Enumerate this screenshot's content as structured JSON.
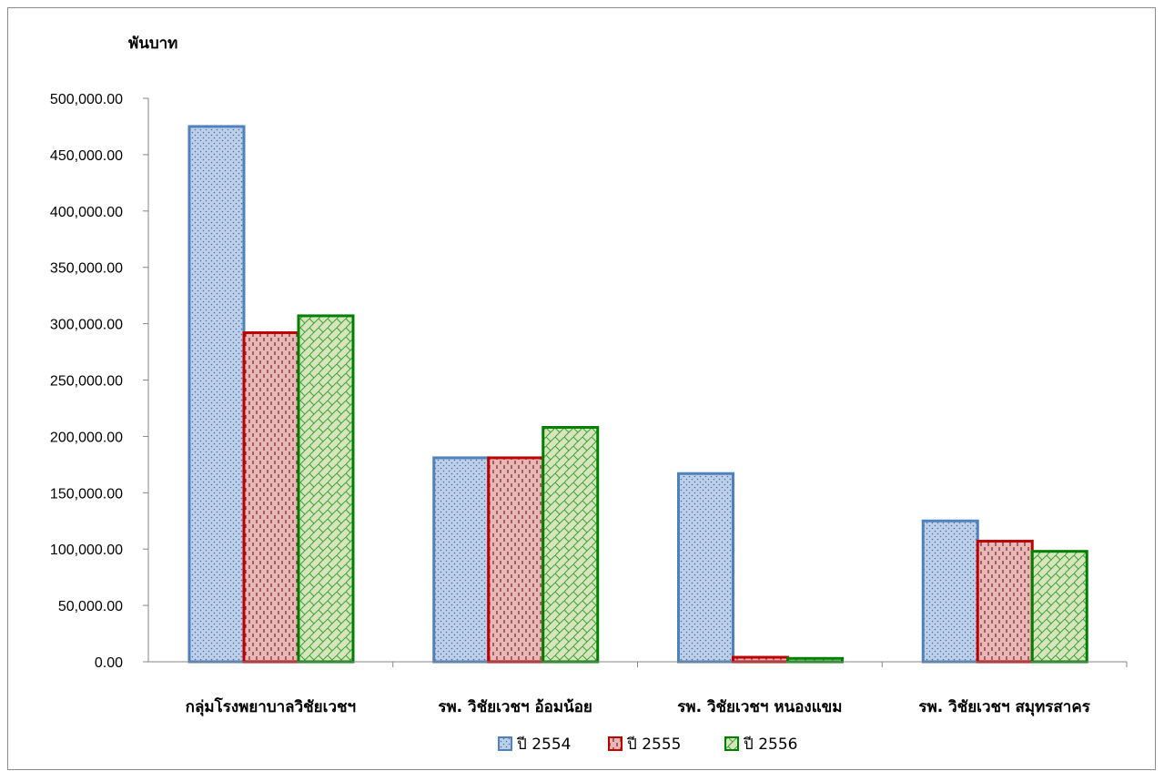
{
  "chart_data": {
    "type": "bar",
    "ylabel": "พันบาท",
    "ylim": [
      0,
      500000
    ],
    "ytick_step": 50000,
    "yticks": [
      "0.00",
      "50,000.00",
      "100,000.00",
      "150,000.00",
      "200,000.00",
      "250,000.00",
      "300,000.00",
      "350,000.00",
      "400,000.00",
      "450,000.00",
      "500,000.00"
    ],
    "categories": [
      "กลุ่มโรงพยาบาลวิชัยเวชฯ",
      "รพ. วิชัยเวชฯ อ้อมน้อย",
      "รพ. วิชัยเวชฯ หนองแขม",
      "รพ. วิชัยเวชฯ สมุทรสาคร"
    ],
    "series": [
      {
        "name": "ปี 2554",
        "values": [
          475000,
          181000,
          167000,
          125000
        ],
        "color": "#4f81bd",
        "fill": "#bdd0ea",
        "pattern": "dots"
      },
      {
        "name": "ปี 2555",
        "values": [
          292000,
          181000,
          4000,
          107000
        ],
        "color": "#c00000",
        "fill": "#e6b9b8",
        "pattern": "dashes"
      },
      {
        "name": "ปี 2556",
        "values": [
          307000,
          208000,
          3000,
          98000
        ],
        "color": "#008000",
        "fill": "#d7e4bc",
        "pattern": "diagonal-cross"
      }
    ],
    "legend_position": "bottom",
    "grid": false
  }
}
